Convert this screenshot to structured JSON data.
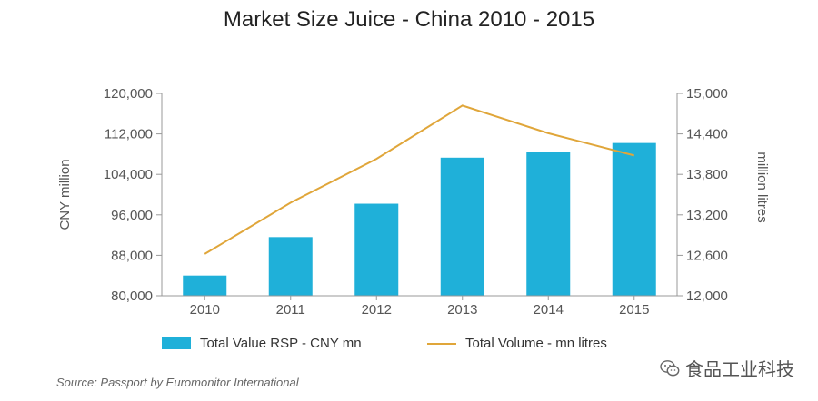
{
  "chart_data": {
    "type": "bar+line",
    "title": "Market Size Juice - China 2010 - 2015",
    "categories": [
      "2010",
      "2011",
      "2012",
      "2013",
      "2014",
      "2015"
    ],
    "series": [
      {
        "name": "Total Value RSP - CNY mn",
        "type": "bar",
        "axis": "left",
        "color": "#1fb0d9",
        "values": [
          84000,
          91600,
          98200,
          107300,
          108500,
          110200
        ]
      },
      {
        "name": "Total Volume - mn litres",
        "type": "line",
        "axis": "right",
        "color": "#e0a63a",
        "values": [
          12620,
          13380,
          14030,
          14820,
          14410,
          14080
        ]
      }
    ],
    "y_left": {
      "label": "CNY million",
      "lim": [
        80000,
        120000
      ],
      "ticks": [
        "80,000",
        "88,000",
        "96,000",
        "104,000",
        "112,000",
        "120,000"
      ]
    },
    "y_right": {
      "label": "million litres",
      "lim": [
        12000,
        15000
      ],
      "ticks": [
        "12,000",
        "12,600",
        "13,200",
        "13,800",
        "14,400",
        "15,000"
      ]
    },
    "grid": false,
    "legend_position": "bottom"
  },
  "source": "Source: Passport by Euromonitor International",
  "watermark": "食品工业科技"
}
